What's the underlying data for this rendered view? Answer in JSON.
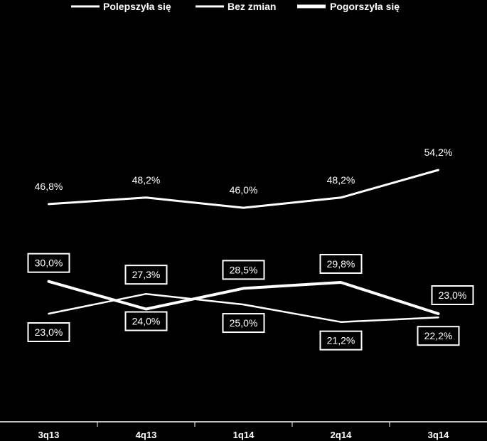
{
  "chart_data": {
    "type": "line",
    "categories": [
      "3q13",
      "4q13",
      "1q14",
      "2q14",
      "3q14"
    ],
    "ylim": [
      0,
      60
    ],
    "grid": false,
    "legend_position": "top",
    "series": [
      {
        "name": "Polepszyła się",
        "values": [
          23.0,
          27.3,
          25.0,
          21.2,
          22.2
        ],
        "labels": [
          "23,0%",
          "27,3%",
          "25,0%",
          "21,2%",
          "22,2%"
        ],
        "color": "#ffffff"
      },
      {
        "name": "Bez zmian",
        "values": [
          46.8,
          48.2,
          46.0,
          48.2,
          54.2
        ],
        "labels": [
          "46,8%",
          "48,2%",
          "46,0%",
          "48,2%",
          "54,2%"
        ],
        "color": "#ffffff"
      },
      {
        "name": "Pogorszyła się",
        "values": [
          30.0,
          24.0,
          28.5,
          29.8,
          23.0
        ],
        "labels": [
          "30,0%",
          "24,0%",
          "28,5%",
          "29,8%",
          "23,0%"
        ],
        "color": "#ffffff"
      }
    ]
  }
}
